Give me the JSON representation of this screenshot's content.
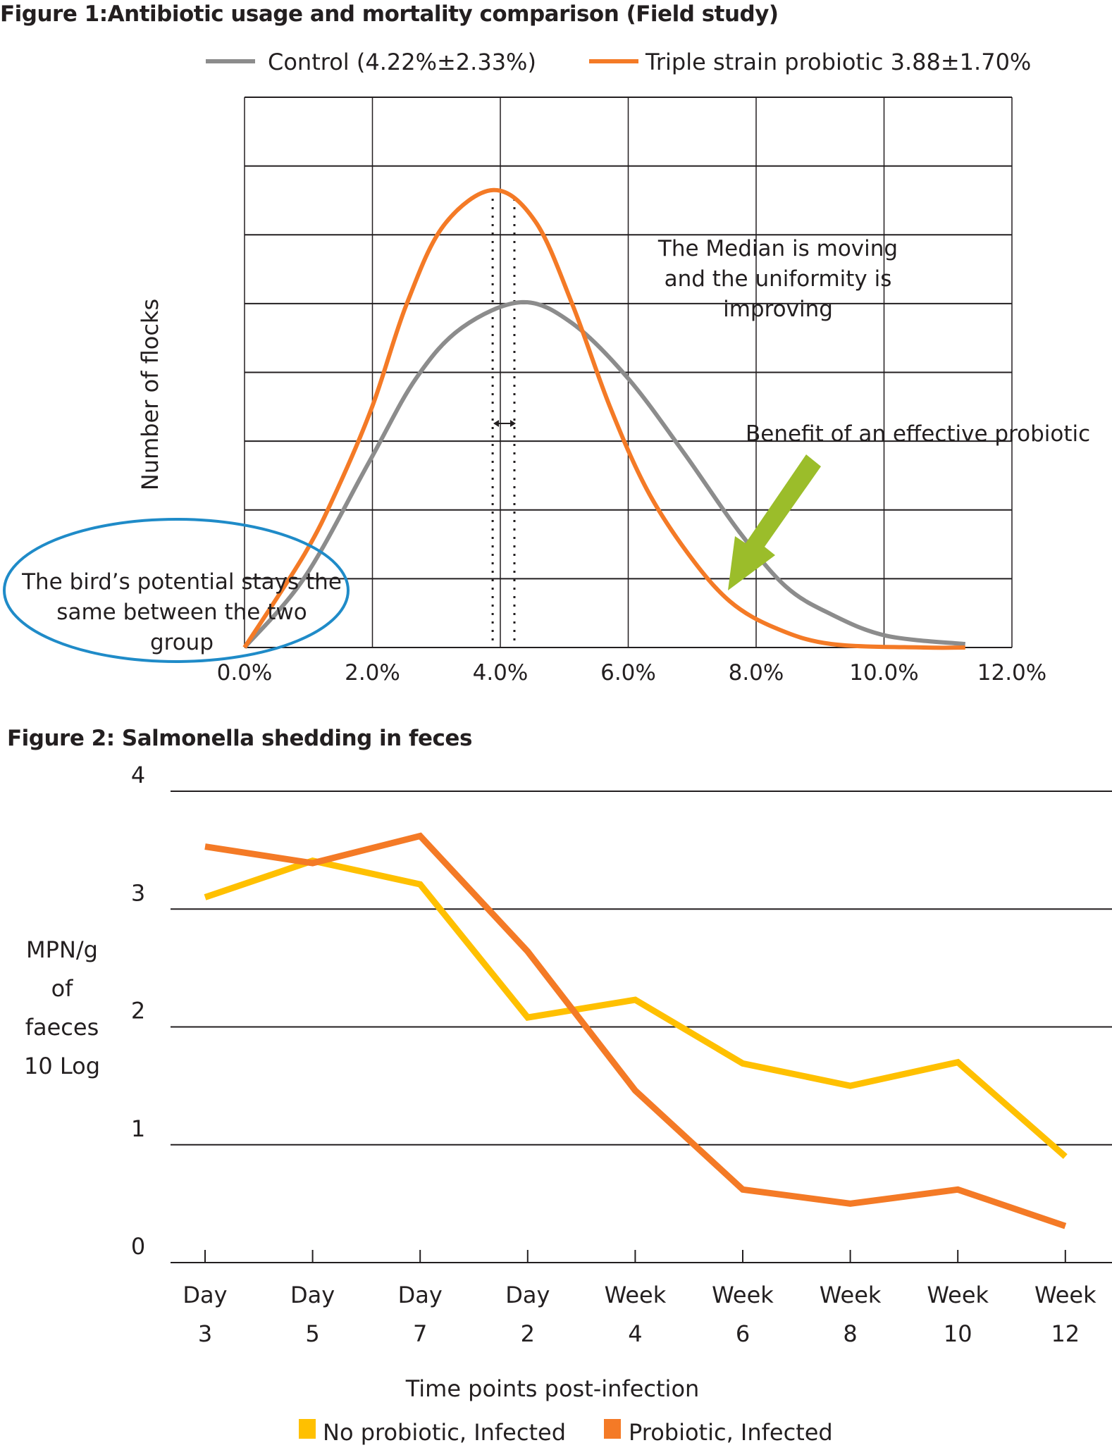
{
  "colors": {
    "control": "#8c8c8c",
    "probiotic": "#f47a26",
    "no_probiotic_infected": "#ffc000",
    "probiotic_infected": "#f47a26",
    "ellipse": "#1f8bc8",
    "arrow": "#9bbd2a",
    "grid": "#231f20"
  },
  "chart_data": [
    {
      "type": "line",
      "title": "Figure 1:Antibiotic usage and mortality comparison (Field study)",
      "xlabel": "",
      "ylabel": "Number of flocks",
      "xlim": [
        0,
        12
      ],
      "ylim": [
        0,
        8
      ],
      "grid": true,
      "x_tick_labels": [
        "0.0%",
        "2.0%",
        "4.0%",
        "6.0%",
        "8.0%",
        "10.0%",
        "12.0%"
      ],
      "x_ticks": [
        0,
        2,
        4,
        6,
        8,
        10,
        12
      ],
      "legend_position": "top",
      "series": [
        {
          "name": "Control (4.22%±2.33%)",
          "color_key": "control",
          "points": [
            [
              0,
              0
            ],
            [
              0.94,
              1.02
            ],
            [
              1.95,
              2.7
            ],
            [
              2.68,
              3.91
            ],
            [
              3.4,
              4.65
            ],
            [
              4.34,
              5.02
            ],
            [
              5.13,
              4.71
            ],
            [
              6.0,
              3.91
            ],
            [
              6.87,
              2.83
            ],
            [
              7.73,
              1.69
            ],
            [
              8.46,
              0.89
            ],
            [
              9.18,
              0.48
            ],
            [
              10.04,
              0.17
            ],
            [
              11.27,
              0.05
            ]
          ]
        },
        {
          "name": "Triple strain probiotic 3.88±1.70%",
          "color_key": "probiotic",
          "points": [
            [
              0,
              0
            ],
            [
              0.94,
              1.36
            ],
            [
              1.45,
              2.3
            ],
            [
              2.0,
              3.51
            ],
            [
              2.53,
              4.98
            ],
            [
              3.11,
              6.13
            ],
            [
              3.89,
              6.65
            ],
            [
              4.55,
              6.19
            ],
            [
              5.13,
              4.98
            ],
            [
              5.71,
              3.51
            ],
            [
              6.29,
              2.3
            ],
            [
              6.94,
              1.36
            ],
            [
              7.59,
              0.67
            ],
            [
              8.31,
              0.28
            ],
            [
              9.18,
              0.05
            ],
            [
              10.62,
              0
            ],
            [
              11.27,
              0
            ]
          ]
        }
      ],
      "median_lines": [
        3.88,
        4.22
      ],
      "annotations": {
        "median": [
          "The Median is moving",
          "and the uniformity is",
          "improving"
        ],
        "benefit": "Benefit of an effective probiotic",
        "potential": [
          "The bird’s potential stays the",
          "same between the two",
          "group"
        ]
      }
    },
    {
      "type": "line",
      "title": "Figure 2: Salmonella shedding in feces",
      "xlabel": "Time points post-infection",
      "ylabel": [
        "MPN/g",
        "of",
        "faeces",
        "10 Log"
      ],
      "ylim": [
        0,
        4
      ],
      "y_ticks": [
        0,
        1,
        2,
        3,
        4
      ],
      "y_tick_labels": [
        "0",
        "1",
        "2",
        "3",
        "4"
      ],
      "grid": true,
      "legend_position": "bottom",
      "categories": [
        [
          "Day",
          "3"
        ],
        [
          "Day",
          "5"
        ],
        [
          "Day",
          "7"
        ],
        [
          "Day",
          "2"
        ],
        [
          "Week",
          "4"
        ],
        [
          "Week",
          "6"
        ],
        [
          "Week",
          "8"
        ],
        [
          "Week",
          "10"
        ],
        [
          "Week",
          "12"
        ]
      ],
      "series": [
        {
          "name": "No probiotic, Infected",
          "color_key": "no_probiotic_infected",
          "values": [
            3.1,
            3.41,
            3.21,
            2.08,
            2.23,
            1.69,
            1.5,
            1.7,
            0.9
          ]
        },
        {
          "name": "Probiotic, Infected",
          "color_key": "probiotic_infected",
          "values": [
            3.53,
            3.39,
            3.62,
            2.64,
            1.46,
            0.62,
            0.5,
            0.62,
            0.31
          ]
        }
      ]
    }
  ]
}
